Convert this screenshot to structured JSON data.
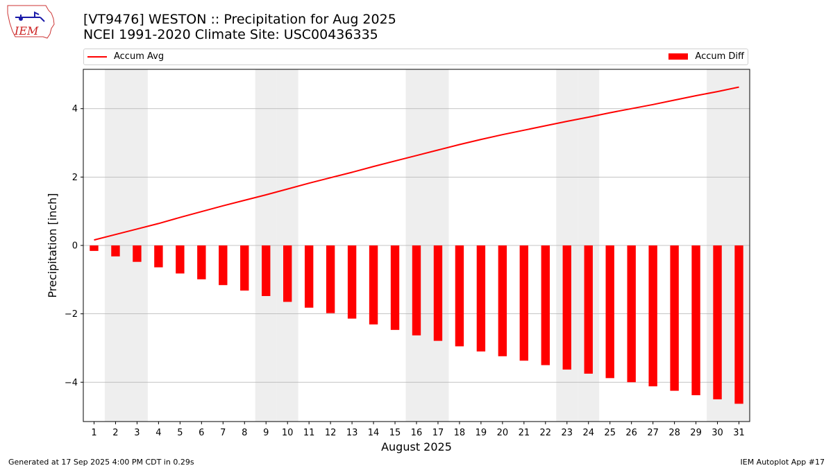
{
  "header": {
    "title_line1": "[VT9476] WESTON :: Precipitation for Aug 2025",
    "title_line2": "NCEI 1991-2020 Climate Site: USC00436335",
    "logo_text": "IEM"
  },
  "legend": {
    "line_label": "Accum Avg",
    "bar_label": "Accum Diff"
  },
  "footer": {
    "left": "Generated at 17 Sep 2025 4:00 PM CDT in 0.29s",
    "right": "IEM Autoplot App #17"
  },
  "colors": {
    "accent": "#ff0000",
    "weekend_shade": "#eeeeee",
    "grid": "#b0b0b0"
  },
  "chart_data": {
    "type": "bar",
    "xlabel": "August 2025",
    "ylabel": "Precipitation [inch]",
    "categories": [
      "1",
      "2",
      "3",
      "4",
      "5",
      "6",
      "7",
      "8",
      "9",
      "10",
      "11",
      "12",
      "13",
      "14",
      "15",
      "16",
      "17",
      "18",
      "19",
      "20",
      "21",
      "22",
      "23",
      "24",
      "25",
      "26",
      "27",
      "28",
      "29",
      "30",
      "31"
    ],
    "ylim": [
      -5.15,
      5.15
    ],
    "yticks": [
      -4,
      -2,
      0,
      2,
      4
    ],
    "ytick_labels": [
      "−4",
      "−2",
      "0",
      "2",
      "4"
    ],
    "grid": "horizontal",
    "legend_placement": "top, above plot",
    "weekend_days": [
      2,
      3,
      9,
      10,
      16,
      17,
      23,
      24,
      30,
      31
    ],
    "series": [
      {
        "name": "Accum Avg",
        "type": "line",
        "color": "#ff0000",
        "values": [
          0.16,
          0.32,
          0.48,
          0.64,
          0.82,
          0.99,
          1.16,
          1.32,
          1.48,
          1.65,
          1.82,
          1.98,
          2.14,
          2.31,
          2.47,
          2.63,
          2.79,
          2.95,
          3.1,
          3.24,
          3.37,
          3.5,
          3.63,
          3.75,
          3.88,
          4.0,
          4.12,
          4.25,
          4.38,
          4.5,
          4.63
        ]
      },
      {
        "name": "Accum Diff",
        "type": "bar",
        "color": "#ff0000",
        "values": [
          -0.16,
          -0.32,
          -0.48,
          -0.64,
          -0.82,
          -0.99,
          -1.16,
          -1.32,
          -1.48,
          -1.65,
          -1.82,
          -1.98,
          -2.14,
          -2.31,
          -2.47,
          -2.63,
          -2.79,
          -2.95,
          -3.1,
          -3.24,
          -3.37,
          -3.5,
          -3.63,
          -3.75,
          -3.88,
          -4.0,
          -4.12,
          -4.25,
          -4.38,
          -4.5,
          -4.63
        ]
      }
    ]
  }
}
